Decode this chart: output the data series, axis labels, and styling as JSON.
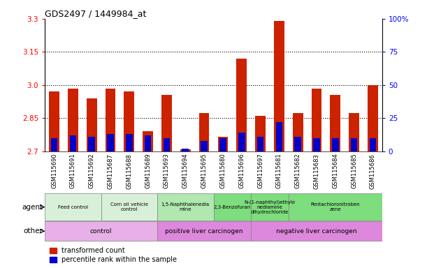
{
  "title": "GDS2497 / 1449984_at",
  "samples": [
    "GSM115690",
    "GSM115691",
    "GSM115692",
    "GSM115687",
    "GSM115688",
    "GSM115689",
    "GSM115693",
    "GSM115694",
    "GSM115695",
    "GSM115680",
    "GSM115696",
    "GSM115697",
    "GSM115681",
    "GSM115682",
    "GSM115683",
    "GSM115684",
    "GSM115685",
    "GSM115686"
  ],
  "red_values": [
    2.97,
    2.985,
    2.94,
    2.985,
    2.97,
    2.79,
    2.955,
    2.71,
    2.875,
    2.765,
    3.12,
    2.86,
    3.29,
    2.875,
    2.985,
    2.955,
    2.875,
    3.0
  ],
  "blue_values_pct": [
    10,
    12,
    11,
    13,
    13,
    12,
    10,
    2,
    8,
    10,
    14,
    11,
    22,
    11,
    10,
    10,
    10,
    10
  ],
  "ymin": 2.7,
  "ymax": 3.3,
  "yticks_left": [
    2.7,
    2.85,
    3.0,
    3.15,
    3.3
  ],
  "yticks_right": [
    0,
    25,
    50,
    75,
    100
  ],
  "gridlines": [
    2.85,
    3.0,
    3.15
  ],
  "agent_groups": [
    {
      "label": "Feed control",
      "start": 0,
      "end": 3,
      "color": "#d8f0d8"
    },
    {
      "label": "Corn oil vehicle\ncontrol",
      "start": 3,
      "end": 6,
      "color": "#d8f0d8"
    },
    {
      "label": "1,5-Naphthalenedia\nmine",
      "start": 6,
      "end": 9,
      "color": "#b0e8b0"
    },
    {
      "label": "2,3-Benzofuran",
      "start": 9,
      "end": 11,
      "color": "#7edd7e"
    },
    {
      "label": "N-(1-naphthyl)ethyle\nnediamine\ndihydrochloride",
      "start": 11,
      "end": 13,
      "color": "#7edd7e"
    },
    {
      "label": "Pentachloronitroben\nzene",
      "start": 13,
      "end": 18,
      "color": "#7edd7e"
    }
  ],
  "other_groups": [
    {
      "label": "control",
      "start": 0,
      "end": 6,
      "color": "#e8b0e8"
    },
    {
      "label": "positive liver carcinogen",
      "start": 6,
      "end": 11,
      "color": "#dd88dd"
    },
    {
      "label": "negative liver carcinogen",
      "start": 11,
      "end": 18,
      "color": "#dd88dd"
    }
  ],
  "bar_width": 0.55,
  "bar_color_red": "#cc2200",
  "bar_color_blue": "#0000cc",
  "legend_red": "transformed count",
  "legend_blue": "percentile rank within the sample"
}
